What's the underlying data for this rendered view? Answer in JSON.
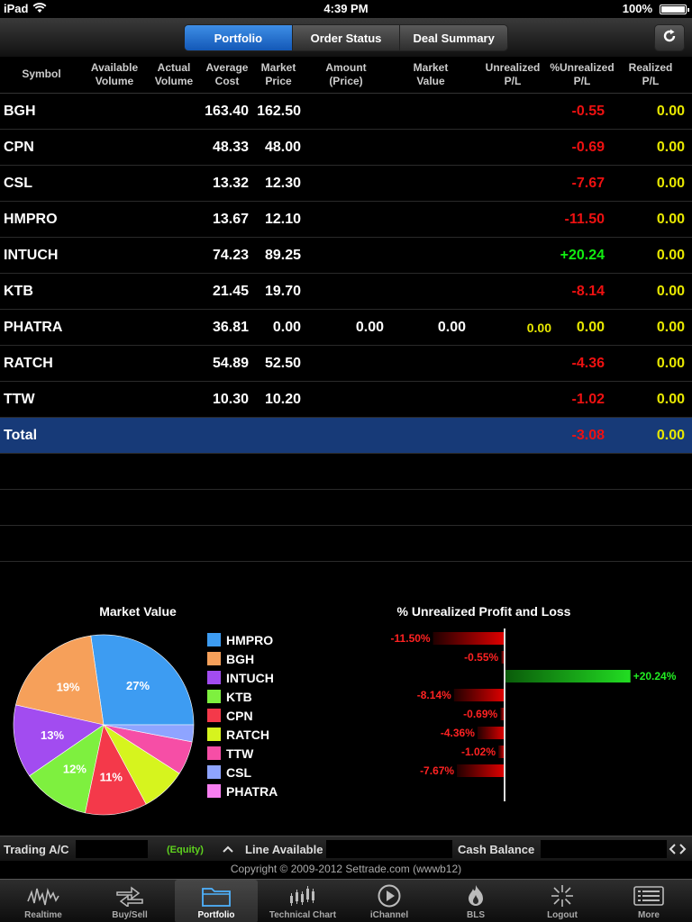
{
  "status_bar": {
    "device": "iPad",
    "time": "4:39 PM",
    "battery": "100%"
  },
  "nav": {
    "segments": [
      {
        "label": "Portfolio",
        "active": true
      },
      {
        "label": "Order Status",
        "active": false
      },
      {
        "label": "Deal Summary",
        "active": false
      }
    ],
    "refresh_icon": "refresh-icon"
  },
  "table": {
    "headers": {
      "symbol": "Symbol",
      "available_volume": "Available Volume",
      "actual_volume": "Actual Volume",
      "average_cost": "Average Cost",
      "market_price": "Market Price",
      "amount": "Amount (Price)",
      "market_value": "Market Value",
      "unrealized_pl": "Unrealized P/L",
      "pct_unrealized_pl": "%Unrealized P/L",
      "realized_pl": "Realized P/L"
    },
    "rows": [
      {
        "symbol": "BGH",
        "average_cost": "163.40",
        "market_price": "162.50",
        "amount": "",
        "market_value": "",
        "unrealized_pl": "",
        "pct_unrealized_pl": "-0.55",
        "pct_sign": "neg",
        "realized_pl": "0.00"
      },
      {
        "symbol": "CPN",
        "average_cost": "48.33",
        "market_price": "48.00",
        "amount": "",
        "market_value": "",
        "unrealized_pl": "",
        "pct_unrealized_pl": "-0.69",
        "pct_sign": "neg",
        "realized_pl": "0.00"
      },
      {
        "symbol": "CSL",
        "average_cost": "13.32",
        "market_price": "12.30",
        "amount": "",
        "market_value": "",
        "unrealized_pl": "",
        "pct_unrealized_pl": "-7.67",
        "pct_sign": "neg",
        "realized_pl": "0.00"
      },
      {
        "symbol": "HMPRO",
        "average_cost": "13.67",
        "market_price": "12.10",
        "amount": "",
        "market_value": "",
        "unrealized_pl": "",
        "pct_unrealized_pl": "-11.50",
        "pct_sign": "neg",
        "realized_pl": "0.00"
      },
      {
        "symbol": "INTUCH",
        "average_cost": "74.23",
        "market_price": "89.25",
        "amount": "",
        "market_value": "",
        "unrealized_pl": "",
        "pct_unrealized_pl": "+20.24",
        "pct_sign": "pos",
        "realized_pl": "0.00"
      },
      {
        "symbol": "KTB",
        "average_cost": "21.45",
        "market_price": "19.70",
        "amount": "",
        "market_value": "",
        "unrealized_pl": "",
        "pct_unrealized_pl": "-8.14",
        "pct_sign": "neg",
        "realized_pl": "0.00"
      },
      {
        "symbol": "PHATRA",
        "average_cost": "36.81",
        "market_price": "0.00",
        "amount": "0.00",
        "market_value": "0.00",
        "unrealized_pl": "0.00",
        "pct_unrealized_pl": "0.00",
        "pct_sign": "zero",
        "realized_pl": "0.00"
      },
      {
        "symbol": "RATCH",
        "average_cost": "54.89",
        "market_price": "52.50",
        "amount": "",
        "market_value": "",
        "unrealized_pl": "",
        "pct_unrealized_pl": "-4.36",
        "pct_sign": "neg",
        "realized_pl": "0.00"
      },
      {
        "symbol": "TTW",
        "average_cost": "10.30",
        "market_price": "10.20",
        "amount": "",
        "market_value": "",
        "unrealized_pl": "",
        "pct_unrealized_pl": "-1.02",
        "pct_sign": "neg",
        "realized_pl": "0.00"
      }
    ],
    "total": {
      "label": "Total",
      "pct_unrealized_pl": "-3.08",
      "realized_pl": "0.00"
    }
  },
  "chart_data": [
    {
      "type": "pie",
      "title": "Market Value",
      "categories": [
        "HMPRO",
        "BGH",
        "INTUCH",
        "KTB",
        "CPN",
        "RATCH",
        "TTW",
        "CSL",
        "PHATRA"
      ],
      "values": [
        27,
        19,
        13,
        12,
        11,
        8,
        6,
        3,
        0
      ],
      "slice_labels": [
        "27%",
        "19%",
        "13%",
        "12%",
        "11%",
        "",
        "",
        "",
        ""
      ],
      "colors": [
        "#3d9cf2",
        "#f6a05a",
        "#a24cf0",
        "#7ef03f",
        "#f4394a",
        "#d6f41e",
        "#f64ea6",
        "#8ea4ff",
        "#f77ef0"
      ],
      "legend_position": "right"
    },
    {
      "type": "bar",
      "orientation": "horizontal",
      "title": "% Unrealized Profit and Loss",
      "categories": [
        "HMPRO",
        "BGH",
        "INTUCH",
        "KTB",
        "CPN",
        "RATCH",
        "TTW",
        "CSL"
      ],
      "values": [
        -11.5,
        -0.55,
        20.24,
        -8.14,
        -0.69,
        -4.36,
        -1.02,
        -7.67
      ],
      "value_labels": [
        "-11.50%",
        "-0.55%",
        "+20.24%",
        "-8.14%",
        "-0.69%",
        "-4.36%",
        "-1.02%",
        "-7.67%"
      ],
      "colors": {
        "negative": "#e00000",
        "positive": "#22dd22"
      }
    }
  ],
  "info_bar": {
    "trading_ac_label": "Trading A/C",
    "equity_label": "(Equity)",
    "line_available_label": "Line Available",
    "cash_balance_label": "Cash Balance"
  },
  "copyright": "Copyright © 2009-2012 Settrade.com (wwwb12)",
  "tabbar": [
    {
      "label": "Realtime",
      "icon": "realtime-chart-icon",
      "active": false
    },
    {
      "label": "Buy/Sell",
      "icon": "buy-sell-arrows-icon",
      "active": false
    },
    {
      "label": "Portfolio",
      "icon": "portfolio-folder-icon",
      "active": true
    },
    {
      "label": "Technical Chart",
      "icon": "candlestick-chart-icon",
      "active": false
    },
    {
      "label": "iChannel",
      "icon": "play-icon",
      "active": false
    },
    {
      "label": "BLS",
      "icon": "bls-flame-icon",
      "active": false
    },
    {
      "label": "Logout",
      "icon": "logout-burst-icon",
      "active": false
    },
    {
      "label": "More",
      "icon": "more-list-icon",
      "active": false
    }
  ]
}
